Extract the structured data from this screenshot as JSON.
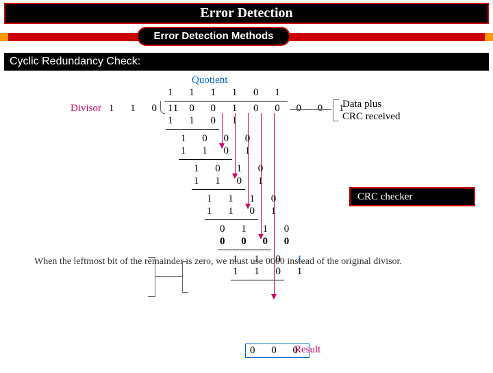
{
  "title": "Error Detection",
  "subtitle": "Error Detection Methods",
  "section": "Cyclic Redundancy Check:",
  "labels": {
    "quotient": "Quotient",
    "divisor": "Divisor",
    "dataplus": "Data plus\nCRC received",
    "note": "When the leftmost bit\nof the remainder is zero,\nwe must use 0000 instead\nof the original divisor.",
    "result": "Result",
    "crcchecker": "CRC checker"
  },
  "division": {
    "quotient": "1 1 1 1 0 1",
    "divisor": "1 1 0 1",
    "dividend": "1 0 0 1 0 0 0 0 1",
    "steps": [
      {
        "a": "1 1 0 1",
        "col": 0
      },
      {
        "line": true,
        "col": 0,
        "w": 4
      },
      {
        "a": "1 0 0 0",
        "col": 1
      },
      {
        "a": "1 1 0 1",
        "col": 1
      },
      {
        "line": true,
        "col": 1,
        "w": 4
      },
      {
        "a": "1 0 1 0",
        "col": 2
      },
      {
        "a": "1 1 0 1",
        "col": 2
      },
      {
        "line": true,
        "col": 2,
        "w": 4
      },
      {
        "a": "1 1 1 0",
        "col": 3
      },
      {
        "a": "1 1 0 1",
        "col": 3
      },
      {
        "line": true,
        "col": 3,
        "w": 4
      },
      {
        "a": "0 1 1 0",
        "col": 4
      },
      {
        "a": "0 0 0 0",
        "col": 4,
        "bold": true
      },
      {
        "line": true,
        "col": 4,
        "w": 4
      },
      {
        "a": "1 1 0 1",
        "col": 5,
        "lastblue": true
      },
      {
        "a": "1 1 0 1",
        "col": 5
      },
      {
        "line": true,
        "col": 5,
        "w": 4
      }
    ],
    "result": "0 0 0"
  },
  "colors": {
    "accent_red": "#cc0000",
    "magenta": "#cc0066",
    "blue": "#0066cc",
    "orange": "#ff9900"
  }
}
